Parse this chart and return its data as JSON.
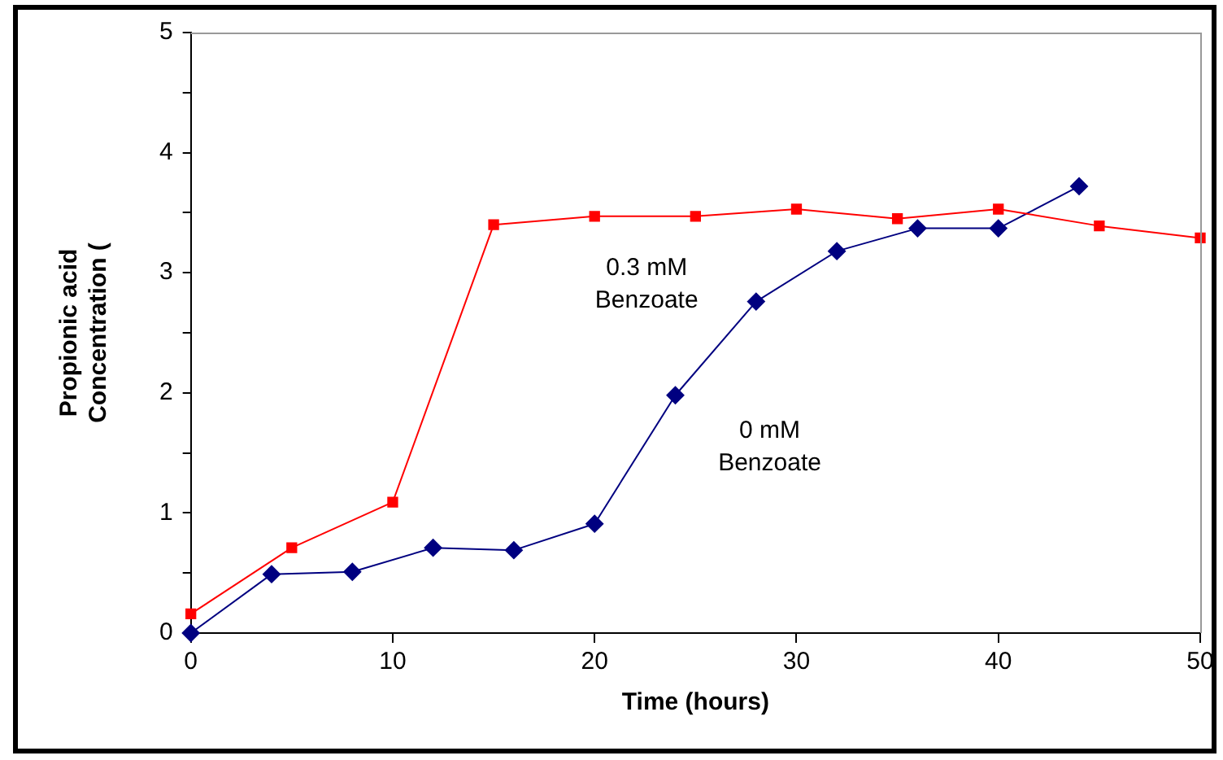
{
  "chart_data": {
    "type": "line",
    "xlabel": "Time (hours)",
    "ylabel": "Propionic acid\nConcentration (",
    "xlim": [
      0,
      50
    ],
    "xticks": [
      0,
      10,
      20,
      30,
      40,
      50
    ],
    "ylim": [
      0,
      5
    ],
    "yticks": [
      0,
      {
        "value": 0.5,
        "label": null
      },
      1,
      {
        "value": 1.5,
        "label": null
      },
      2,
      {
        "value": 2.5,
        "label": null
      },
      3,
      {
        "value": 3.5,
        "label": null
      },
      4,
      {
        "value": 4.5,
        "label": null
      },
      5
    ],
    "grid": false,
    "legend": false,
    "line_style": "solid",
    "series": [
      {
        "name": "0.3 mM\nBenzoate",
        "color": "#ff0000",
        "marker": "square",
        "x": [
          0,
          5,
          10,
          15,
          20,
          25,
          30,
          35,
          40,
          45,
          50
        ],
        "values": [
          0.16,
          0.71,
          1.09,
          3.4,
          3.47,
          3.47,
          3.53,
          3.45,
          3.53,
          3.39,
          3.29
        ]
      },
      {
        "name": "0 mM\nBenzoate",
        "color": "#000080",
        "marker": "diamond",
        "x": [
          0,
          4,
          8,
          12,
          16,
          20,
          24,
          28,
          32,
          36,
          40,
          44
        ],
        "values": [
          0,
          0.49,
          0.51,
          0.71,
          0.69,
          0.91,
          1.98,
          2.76,
          3.18,
          3.37,
          3.37,
          3.72
        ]
      }
    ]
  }
}
